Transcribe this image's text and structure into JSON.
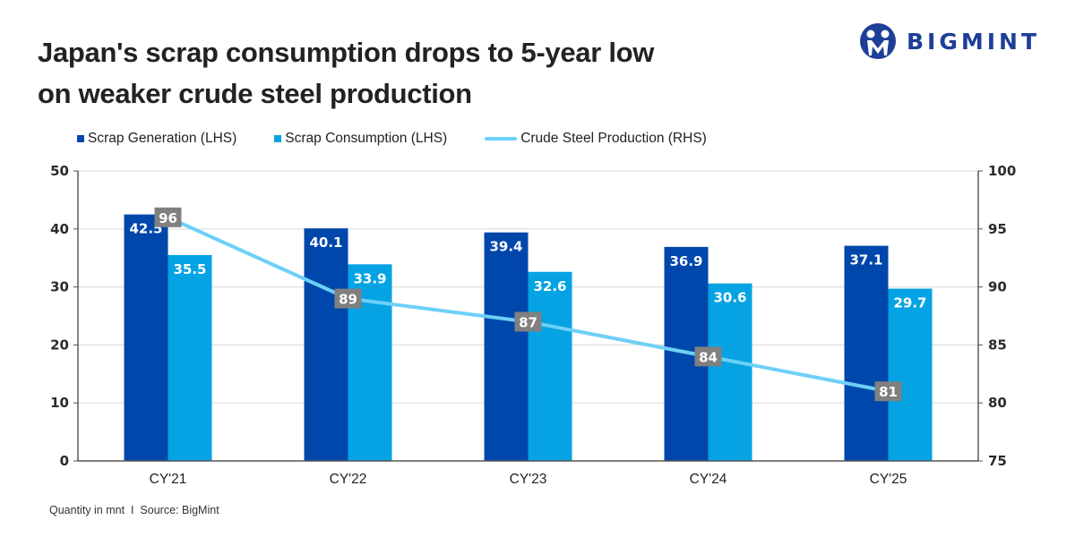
{
  "header": {
    "title_line1": "Japan's scrap consumption drops to 5-year low",
    "title_line2": "on weaker crude steel production",
    "logo_text": "BIGMINT",
    "logo_icon": "people-circle-icon"
  },
  "footer": {
    "note": "Quantity in mnt  I  Source: BigMint"
  },
  "colors": {
    "scrap_generation": "#0047ab",
    "scrap_consumption": "#05a3e3",
    "crude_steel": "#6dd0f7",
    "point_label_bg": "#808080",
    "brand": "#1e3f97"
  },
  "chart_data": {
    "type": "bar",
    "title": "Japan's scrap consumption drops to 5-year low on weaker crude steel production",
    "categories": [
      "CY'21",
      "CY'22",
      "CY'23",
      "CY'24",
      "CY'25"
    ],
    "series": [
      {
        "name": "Scrap Generation (LHS)",
        "type": "bar",
        "axis": "left",
        "values": [
          42.5,
          40.1,
          39.4,
          36.9,
          37.1
        ]
      },
      {
        "name": "Scrap Consumption (LHS)",
        "type": "bar",
        "axis": "left",
        "values": [
          35.5,
          33.9,
          32.6,
          30.6,
          29.7
        ]
      },
      {
        "name": "Crude Steel Production (RHS)",
        "type": "line",
        "axis": "right",
        "values": [
          96,
          89,
          87,
          84,
          81
        ]
      }
    ],
    "left_axis": {
      "range": [
        0,
        50
      ],
      "ticks": [
        "0",
        "10",
        "20",
        "30",
        "40",
        "50"
      ]
    },
    "right_axis": {
      "range": [
        75,
        100
      ],
      "ticks": [
        "75",
        "80",
        "85",
        "90",
        "95",
        "100"
      ]
    },
    "xlabel": "",
    "ylabel": "",
    "unit_note": "Quantity in mnt",
    "grid": true,
    "legend_position": "top-left"
  }
}
